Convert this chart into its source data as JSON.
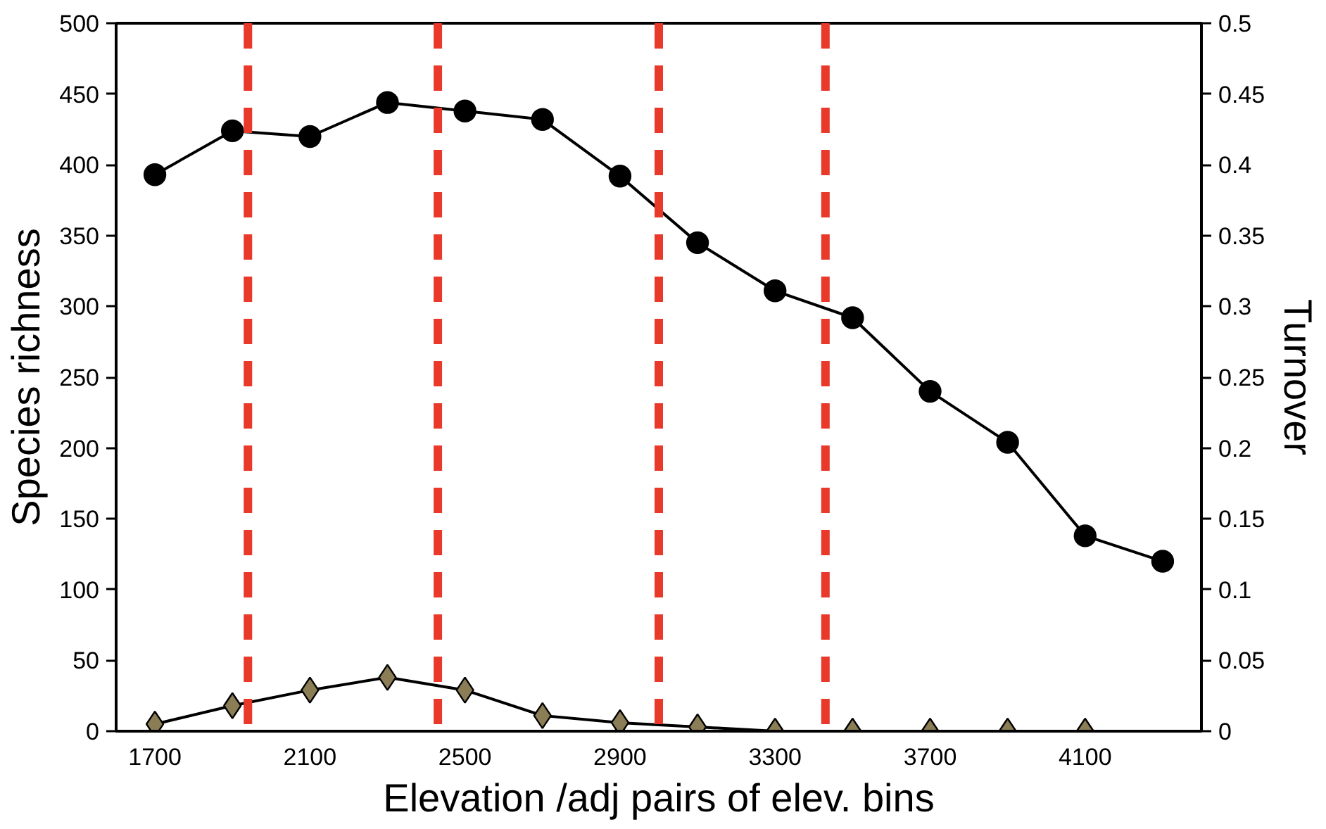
{
  "chart_data": {
    "type": "line",
    "xlabel": "Elevation /adj pairs of elev. bins",
    "ylabel": "Species richness",
    "y2label": "Turnover",
    "series": [
      {
        "color": "#000000",
        "marker": "circle",
        "x": [
          1700,
          1900,
          2100,
          2300,
          2500,
          2700,
          2900,
          3100,
          3300,
          3500,
          3700,
          3900,
          4100,
          4300
        ],
        "values": [
          393,
          424,
          420,
          444,
          438,
          432,
          392,
          345,
          311,
          292,
          240,
          204,
          138,
          120
        ]
      },
      {
        "color": "#8b7d55",
        "marker": "diamond",
        "axis": "y2",
        "x": [
          1700,
          1900,
          2100,
          2300,
          2500,
          2700,
          2900,
          3100,
          3300,
          3500,
          3700,
          3900,
          4100
        ],
        "values": [
          0.005,
          0.018,
          0.029,
          0.038,
          0.029,
          0.011,
          0.006,
          0.003,
          0,
          0,
          0,
          0,
          0
        ]
      }
    ],
    "xlim": [
      1600,
      4400
    ],
    "xticks": [
      1700,
      2100,
      2500,
      2900,
      3300,
      3700,
      4100
    ],
    "ylim": [
      0,
      500
    ],
    "yticks": [
      0,
      50,
      100,
      150,
      200,
      250,
      300,
      350,
      400,
      450,
      500
    ],
    "y2lim": [
      0,
      0.5
    ],
    "y2ticks": [
      0,
      {
        "value": 0.05,
        "label": "0.05"
      },
      {
        "value": 0.1,
        "label": "0.1"
      },
      {
        "value": 0.15,
        "label": "0.15"
      },
      {
        "value": 0.2,
        "label": "0.2"
      },
      {
        "value": 0.25,
        "label": "0.25"
      },
      {
        "value": 0.3,
        "label": "0.3"
      },
      {
        "value": 0.35,
        "label": "0.35"
      },
      {
        "value": 0.4,
        "label": "0.4"
      },
      {
        "value": 0.45,
        "label": "0.45"
      },
      {
        "value": 0.5,
        "label": "0.5"
      }
    ],
    "ref_lines": [
      {
        "axis": "x",
        "value": 1940,
        "color": "#e8392a",
        "line_style": "dashed"
      },
      {
        "axis": "x",
        "value": 2430,
        "color": "#e8392a",
        "line_style": "dashed"
      },
      {
        "axis": "x",
        "value": 3000,
        "color": "#e8392a",
        "line_style": "dashed"
      },
      {
        "axis": "x",
        "value": 3430,
        "color": "#e8392a",
        "line_style": "dashed"
      }
    ],
    "grid": false,
    "line_style": "solid"
  }
}
